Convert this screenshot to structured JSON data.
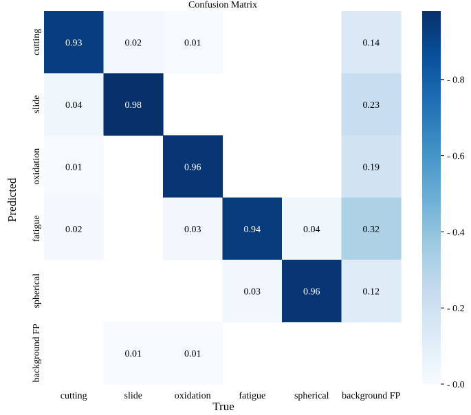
{
  "chart_data": {
    "type": "heatmap",
    "title": "Confusion Matrix",
    "xlabel": "True",
    "ylabel": "Predicted",
    "x_categories": [
      "cutting",
      "slide",
      "oxidation",
      "fatigue",
      "spherical",
      "background FP"
    ],
    "y_categories": [
      "cutting",
      "slide",
      "oxidation",
      "fatigue",
      "spherical",
      "background FP"
    ],
    "values": [
      [
        0.93,
        0.02,
        0.01,
        null,
        null,
        0.14
      ],
      [
        0.04,
        0.98,
        null,
        null,
        null,
        0.23
      ],
      [
        0.01,
        null,
        0.96,
        null,
        null,
        0.19
      ],
      [
        0.02,
        null,
        0.03,
        0.94,
        0.04,
        0.32
      ],
      [
        null,
        null,
        null,
        0.03,
        0.96,
        0.12
      ],
      [
        null,
        0.01,
        0.01,
        null,
        null,
        null
      ]
    ],
    "colorbar": {
      "range": [
        0,
        0.98
      ],
      "ticks": [
        0.0,
        0.2,
        0.4,
        0.6,
        0.8
      ],
      "tick_labels": [
        "0.0",
        "0.2",
        "0.4",
        "0.6",
        "0.8"
      ],
      "colormap": "Blues"
    }
  }
}
